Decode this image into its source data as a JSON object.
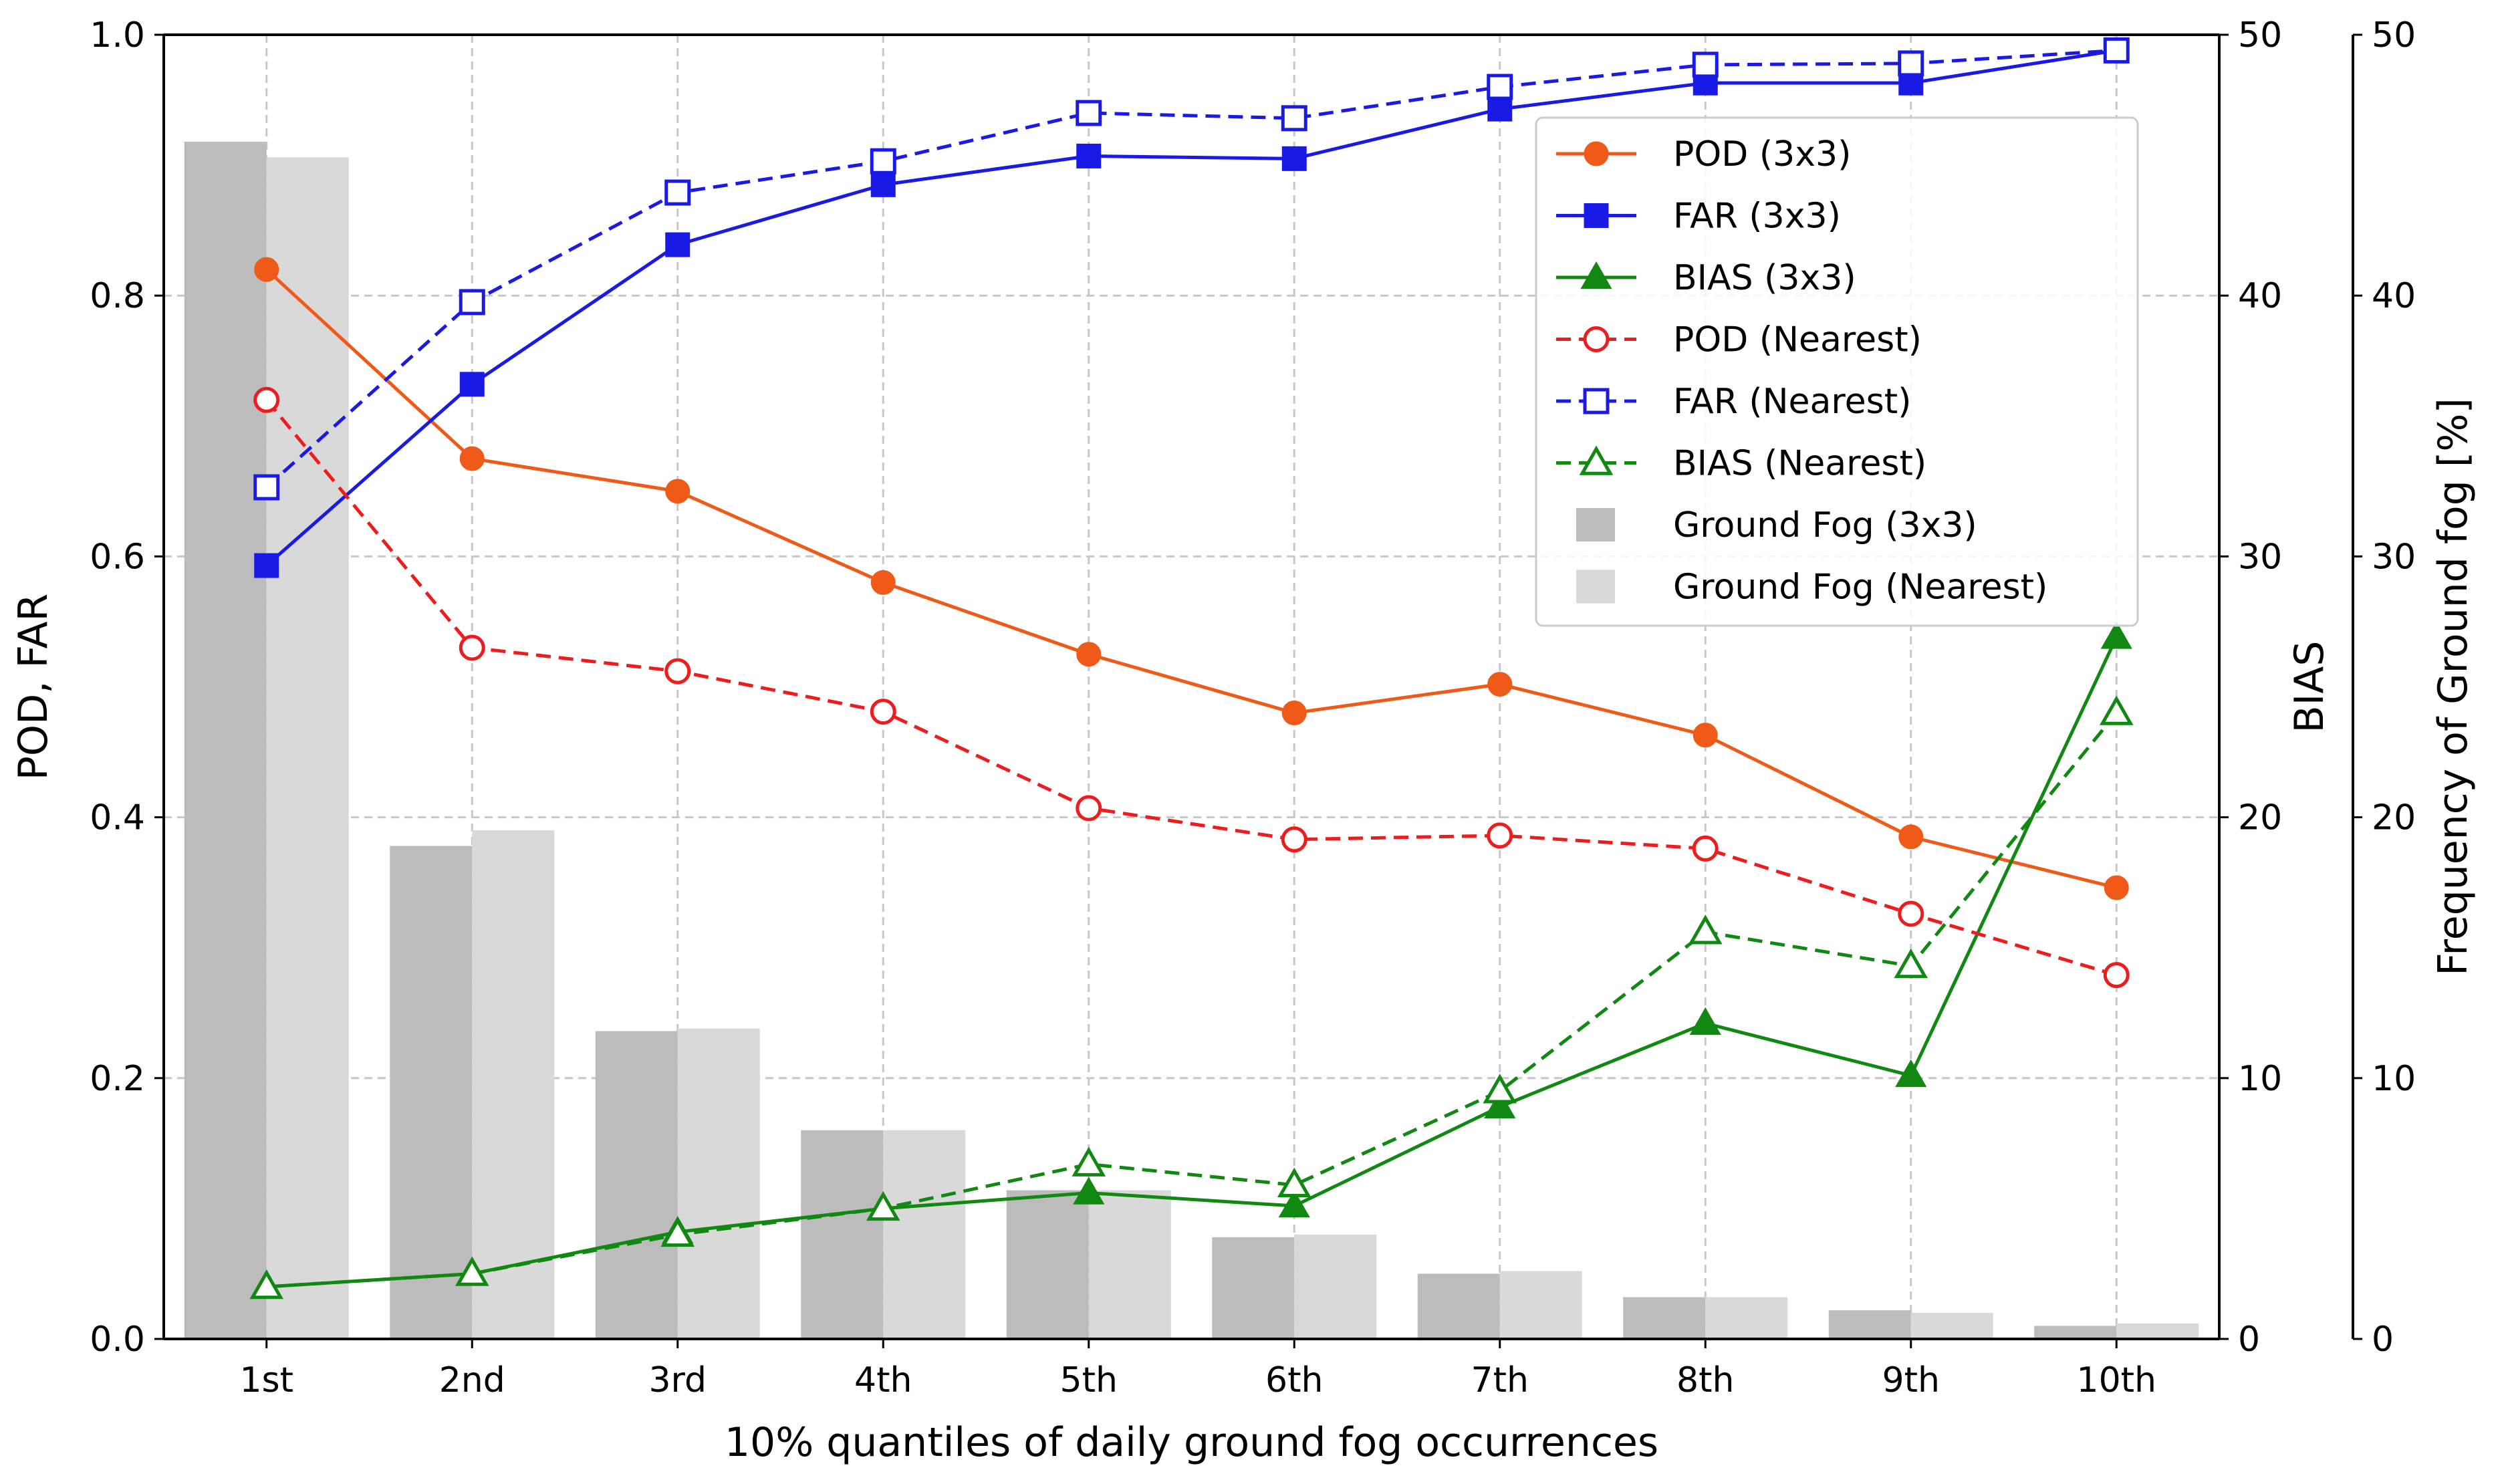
{
  "chart_data": {
    "type": "bar+line",
    "categories": [
      "1st",
      "2nd",
      "3rd",
      "4th",
      "5th",
      "6th",
      "7th",
      "8th",
      "9th",
      "10th"
    ],
    "xlabel": "10% quantiles of daily ground fog occurrences",
    "y_left": {
      "label": "POD, FAR",
      "lim": [
        0,
        1.0
      ],
      "ticks": [
        "0.0",
        "0.2",
        "0.4",
        "0.6",
        "0.8",
        "1.0"
      ]
    },
    "y_bias": {
      "label": "BIAS",
      "lim": [
        0,
        50
      ],
      "ticks": [
        "0",
        "10",
        "20",
        "30",
        "40",
        "50"
      ]
    },
    "y_freq": {
      "label": "Frequency of Ground fog [%]",
      "lim": [
        0,
        50
      ],
      "ticks": [
        "0",
        "10",
        "20",
        "30",
        "40",
        "50"
      ]
    },
    "grid": true,
    "legend_position": "top-right",
    "series": [
      {
        "name": "POD (3x3)",
        "axis": "left",
        "color": "#f05a18",
        "line": "solid",
        "marker": "circle-filled",
        "values": [
          0.82,
          0.675,
          0.65,
          0.58,
          0.525,
          0.48,
          0.502,
          0.463,
          0.385,
          0.346
        ]
      },
      {
        "name": "FAR (3x3)",
        "axis": "left",
        "color": "#1a1ae6",
        "line": "solid",
        "marker": "square-filled",
        "values": [
          0.593,
          0.732,
          0.839,
          0.885,
          0.907,
          0.905,
          0.943,
          0.963,
          0.963,
          0.988
        ]
      },
      {
        "name": "BIAS (3x3)",
        "axis": "bias",
        "color": "#118811",
        "line": "solid",
        "marker": "triangle-filled",
        "values": [
          2.0,
          2.5,
          4.1,
          5.0,
          5.6,
          5.1,
          8.9,
          12.1,
          10.1,
          26.9
        ]
      },
      {
        "name": "POD (Nearest)",
        "axis": "left",
        "color": "#ee1c1c",
        "line": "dashed",
        "marker": "circle-open",
        "values": [
          0.72,
          0.53,
          0.512,
          0.481,
          0.407,
          0.383,
          0.386,
          0.376,
          0.326,
          0.279
        ]
      },
      {
        "name": "FAR (Nearest)",
        "axis": "left",
        "color": "#1a1ae6",
        "line": "dashed",
        "marker": "square-open",
        "values": [
          0.653,
          0.795,
          0.879,
          0.903,
          0.94,
          0.936,
          0.96,
          0.977,
          0.978,
          0.988
        ]
      },
      {
        "name": "BIAS (Nearest)",
        "axis": "bias",
        "color": "#118811",
        "line": "dashed",
        "marker": "triangle-open",
        "values": [
          2.0,
          2.5,
          4.0,
          5.0,
          6.7,
          5.9,
          9.5,
          15.6,
          14.3,
          24.0
        ]
      },
      {
        "name": "Ground Fog (3x3)",
        "axis": "freq",
        "type": "bar",
        "color": "#bcbcbc",
        "values": [
          45.9,
          18.9,
          11.8,
          8.0,
          5.7,
          3.9,
          2.5,
          1.6,
          1.1,
          0.5
        ]
      },
      {
        "name": "Ground Fog (Nearest)",
        "axis": "freq",
        "type": "bar",
        "color": "#d9d9d9",
        "values": [
          45.3,
          19.5,
          11.9,
          8.0,
          5.7,
          4.0,
          2.6,
          1.6,
          1.0,
          0.6
        ]
      }
    ]
  }
}
